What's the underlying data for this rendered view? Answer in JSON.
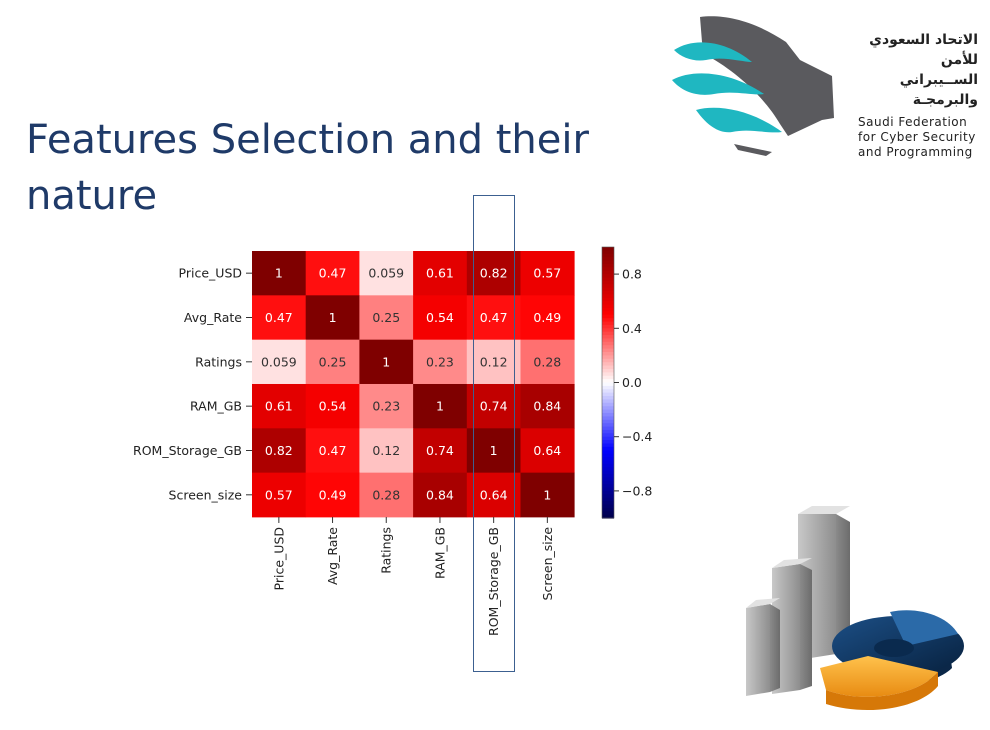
{
  "slide": {
    "title_line1": "Features Selection and their",
    "title_line2": "nature"
  },
  "org": {
    "name_ar_line1": "الاتحاد السعودي",
    "name_ar_line2": "للأمن الســيبراني",
    "name_ar_line3": "والبرمجـة",
    "name_en_line1": "Saudi Federation",
    "name_en_line2": "for Cyber Security",
    "name_en_line3": "and Programming",
    "logo_icon": "sfcsp-logo-icon"
  },
  "decor": {
    "icon": "bar-and-pie-chart-graphic"
  },
  "chart_data": {
    "type": "heatmap",
    "colormap": "seismic",
    "annotations": true,
    "rows": [
      "Price_USD",
      "Avg_Rate",
      "Ratings",
      "RAM_GB",
      "ROM_Storage_GB",
      "Screen_size"
    ],
    "cols": [
      "Price_USD",
      "Avg_Rate",
      "Ratings",
      "RAM_GB",
      "ROM_Storage_GB",
      "Screen_size"
    ],
    "values": [
      [
        1,
        0.47,
        0.059,
        0.61,
        0.82,
        0.57
      ],
      [
        0.47,
        1,
        0.25,
        0.54,
        0.47,
        0.49
      ],
      [
        0.059,
        0.25,
        1,
        0.23,
        0.12,
        0.28
      ],
      [
        0.61,
        0.54,
        0.23,
        1,
        0.74,
        0.84
      ],
      [
        0.82,
        0.47,
        0.12,
        0.74,
        1,
        0.64
      ],
      [
        0.57,
        0.49,
        0.28,
        0.84,
        0.64,
        1
      ]
    ],
    "labels": [
      [
        "1",
        "0.47",
        "0.059",
        "0.61",
        "0.82",
        "0.57"
      ],
      [
        "0.47",
        "1",
        "0.25",
        "0.54",
        "0.47",
        "0.49"
      ],
      [
        "0.059",
        "0.25",
        "1",
        "0.23",
        "0.12",
        "0.28"
      ],
      [
        "0.61",
        "0.54",
        "0.23",
        "1",
        "0.74",
        "0.84"
      ],
      [
        "0.82",
        "0.47",
        "0.12",
        "0.74",
        "1",
        "0.64"
      ],
      [
        "0.57",
        "0.49",
        "0.28",
        "0.84",
        "0.64",
        "1"
      ]
    ],
    "colorbar": {
      "range": [
        -1,
        1
      ],
      "ticks": [
        0.8,
        0.4,
        0.0,
        -0.4,
        -0.8
      ],
      "tick_labels": [
        "0.8",
        "0.4",
        "0.0",
        "−0.4",
        "−0.8"
      ]
    },
    "highlighted_column": "ROM_Storage_GB"
  }
}
